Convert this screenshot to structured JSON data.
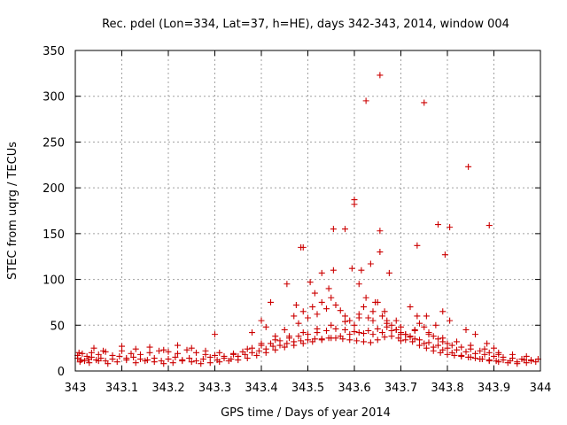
{
  "chart_data": {
    "type": "scatter",
    "title": "Rec. pdel (Lon=334, Lat=37, h=HE), days 342-343, 2014, window 004",
    "xlabel": "GPS time / Days of year 2014",
    "ylabel": "STEC from uqrg / TECUs",
    "xlim": [
      343,
      344
    ],
    "ylim": [
      0,
      350
    ],
    "x_ticks": [
      "343",
      "343.1",
      "343.2",
      "343.3",
      "343.4",
      "343.5",
      "343.6",
      "343.7",
      "343.8",
      "343.9",
      "344"
    ],
    "y_ticks": [
      "0",
      "50",
      "100",
      "150",
      "200",
      "250",
      "300",
      "350"
    ],
    "grid": true,
    "marker": "plus",
    "color": "#cc0000",
    "series": [
      {
        "x": [
          343.005,
          343.012,
          343.02,
          343.028,
          343.035,
          343.045,
          343.055,
          343.065,
          343.08,
          343.095,
          343.11,
          343.125,
          343.14,
          343.155,
          343.17,
          343.185,
          343.2,
          343.215,
          343.23,
          343.245,
          343.26,
          343.275,
          343.29,
          343.305,
          343.32,
          343.335,
          343.35,
          343.365,
          343.38,
          343.395,
          343.41,
          343.425,
          343.44,
          343.455,
          343.47,
          343.485,
          343.5,
          343.515,
          343.53,
          343.545,
          343.56,
          343.575,
          343.59,
          343.605,
          343.62,
          343.635,
          343.65,
          343.665,
          343.68,
          343.695,
          343.71,
          343.725,
          343.74,
          343.755,
          343.77,
          343.785,
          343.8,
          343.815,
          343.83,
          343.845,
          343.86,
          343.875,
          343.89,
          343.905,
          343.92,
          343.935,
          343.95,
          343.965,
          343.98,
          343.995,
          343.005,
          343.015,
          343.025,
          343.035,
          343.05,
          343.065,
          343.08,
          343.1,
          343.12,
          343.14,
          343.16,
          343.18,
          343.2,
          343.22,
          343.24,
          343.26,
          343.28,
          343.3,
          343.32,
          343.34,
          343.36,
          343.38,
          343.4,
          343.42,
          343.44,
          343.46,
          343.48,
          343.5,
          343.52,
          343.54,
          343.56,
          343.58,
          343.6,
          343.62,
          343.64,
          343.66,
          343.68,
          343.7,
          343.72,
          343.74,
          343.76,
          343.78,
          343.8,
          343.82,
          343.84,
          343.86,
          343.88,
          343.9,
          343.92,
          343.94,
          343.96,
          343.98,
          343.01,
          343.03,
          343.05,
          343.07,
          343.09,
          343.11,
          343.13,
          343.15,
          343.17,
          343.19,
          343.21,
          343.23,
          343.25,
          343.27,
          343.29,
          343.31,
          343.33,
          343.35,
          343.37,
          343.39,
          343.41,
          343.43,
          343.45,
          343.47,
          343.49,
          343.51,
          343.53,
          343.55,
          343.57,
          343.59,
          343.61,
          343.63,
          343.65,
          343.67,
          343.69,
          343.71,
          343.73,
          343.75,
          343.77,
          343.79,
          343.81,
          343.83,
          343.85,
          343.87,
          343.89,
          343.91,
          343.93,
          343.95,
          343.97,
          343.99,
          343.008,
          343.04,
          343.06,
          343.1,
          343.13,
          343.16,
          343.19,
          343.22,
          343.25,
          343.28,
          343.31,
          343.34,
          343.37,
          343.4,
          343.43,
          343.46,
          343.49,
          343.52,
          343.55,
          343.58,
          343.61,
          343.64,
          343.67,
          343.7,
          343.73,
          343.76,
          343.79,
          343.82,
          343.85,
          343.88,
          343.91,
          343.94,
          343.97,
          343.38,
          343.4,
          343.41,
          343.43,
          343.45,
          343.47,
          343.48,
          343.49,
          343.5,
          343.51,
          343.52,
          343.53,
          343.54,
          343.55,
          343.56,
          343.57,
          343.58,
          343.59,
          343.6,
          343.61,
          343.62,
          343.63,
          343.64,
          343.65,
          343.66,
          343.67,
          343.68,
          343.69,
          343.7,
          343.71,
          343.72,
          343.73,
          343.74,
          343.75,
          343.76,
          343.77,
          343.78,
          343.79,
          343.8,
          343.81,
          343.83,
          343.85,
          343.87,
          343.89,
          343.91,
          343.42,
          343.455,
          343.475,
          343.49,
          343.505,
          343.515,
          343.53,
          343.545,
          343.555,
          343.58,
          343.595,
          343.61,
          343.615,
          343.625,
          343.635,
          343.645,
          343.655,
          343.665,
          343.675,
          343.69,
          343.72,
          343.735,
          343.755,
          343.775,
          343.79,
          343.805,
          343.84,
          343.86,
          343.885,
          343.9,
          343.485,
          343.555,
          343.6,
          343.6,
          343.625,
          343.655,
          343.735,
          343.75,
          343.78,
          343.795,
          343.805,
          343.845,
          343.89,
          343.655,
          343.3,
          343.7
        ],
        "y": [
          14,
          12,
          11,
          13,
          15,
          12,
          14,
          11,
          13,
          16,
          14,
          15,
          13,
          12,
          14,
          11,
          13,
          15,
          12,
          14,
          11,
          13,
          15,
          12,
          14,
          13,
          16,
          18,
          20,
          22,
          24,
          27,
          28,
          30,
          32,
          33,
          34,
          35,
          35,
          36,
          36,
          35,
          34,
          33,
          32,
          31,
          34,
          37,
          38,
          36,
          34,
          32,
          28,
          25,
          22,
          20,
          18,
          17,
          16,
          15,
          14,
          13,
          12,
          11,
          12,
          11,
          10,
          12,
          11,
          13,
          17,
          19,
          16,
          20,
          18,
          21,
          17,
          22,
          19,
          18,
          20,
          22,
          21,
          19,
          23,
          20,
          18,
          17,
          16,
          19,
          21,
          25,
          28,
          30,
          33,
          36,
          38,
          40,
          42,
          44,
          46,
          45,
          43,
          41,
          40,
          42,
          44,
          40,
          37,
          34,
          31,
          28,
          25,
          23,
          21,
          19,
          18,
          16,
          15,
          14,
          13,
          12,
          10,
          9,
          11,
          8,
          10,
          12,
          9,
          11,
          10,
          8,
          9,
          11,
          10,
          8,
          9,
          10,
          11,
          12,
          14,
          17,
          20,
          23,
          26,
          28,
          30,
          32,
          34,
          36,
          38,
          40,
          42,
          44,
          46,
          48,
          45,
          40,
          35,
          30,
          26,
          23,
          20,
          17,
          15,
          13,
          11,
          10,
          9,
          8,
          9,
          10,
          20,
          25,
          22,
          27,
          24,
          26,
          23,
          28,
          25,
          22,
          20,
          18,
          24,
          30,
          34,
          38,
          42,
          46,
          50,
          54,
          58,
          55,
          52,
          48,
          44,
          40,
          36,
          32,
          28,
          24,
          20,
          18,
          16,
          42,
          55,
          48,
          38,
          45,
          60,
          52,
          65,
          58,
          70,
          62,
          75,
          68,
          80,
          72,
          66,
          60,
          55,
          50,
          62,
          70,
          58,
          65,
          75,
          60,
          55,
          50,
          45,
          42,
          40,
          38,
          45,
          52,
          48,
          42,
          38,
          35,
          32,
          30,
          28,
          26,
          24,
          22,
          20,
          18,
          75,
          95,
          72,
          135,
          97,
          85,
          107,
          90,
          110,
          155,
          112,
          95,
          110,
          80,
          117,
          75,
          153,
          65,
          107,
          55,
          70,
          137,
          60,
          50,
          65,
          55,
          45,
          40,
          30,
          25,
          135,
          155,
          187,
          182,
          295,
          323,
          60,
          293,
          160,
          127,
          157,
          223,
          159,
          130,
          40,
          33
        ]
      }
    ]
  }
}
